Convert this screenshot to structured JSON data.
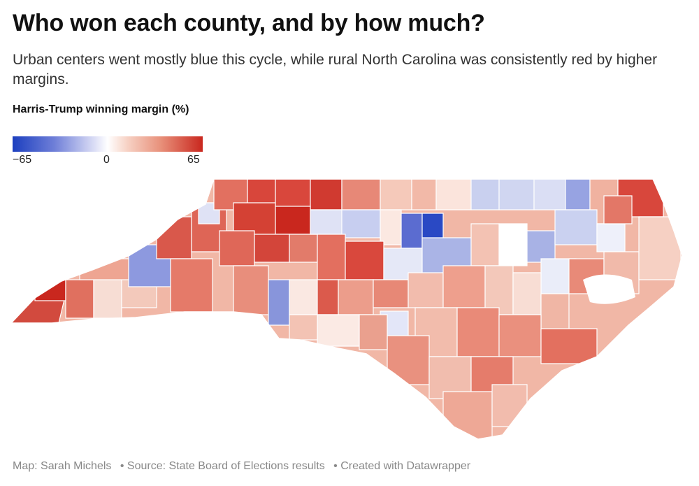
{
  "header": {
    "title": "Who won each county, and by how much?",
    "subtitle": "Urban centers went mostly blue this cycle, while rural North Carolina was consistently red by higher margins."
  },
  "legend": {
    "title": "Harris-Trump winning margin (%)",
    "min_label": "−65",
    "mid_label": "0",
    "max_label": "65",
    "colors": {
      "strong_blue": "#1c3fbf",
      "neutral": "#ffffff",
      "strong_red": "#c9271e"
    }
  },
  "footer": {
    "map_credit": "Map: Sarah Michels",
    "source": "• Source: State Board of Elections results",
    "tool": "• Created with Datawrapper"
  }
}
